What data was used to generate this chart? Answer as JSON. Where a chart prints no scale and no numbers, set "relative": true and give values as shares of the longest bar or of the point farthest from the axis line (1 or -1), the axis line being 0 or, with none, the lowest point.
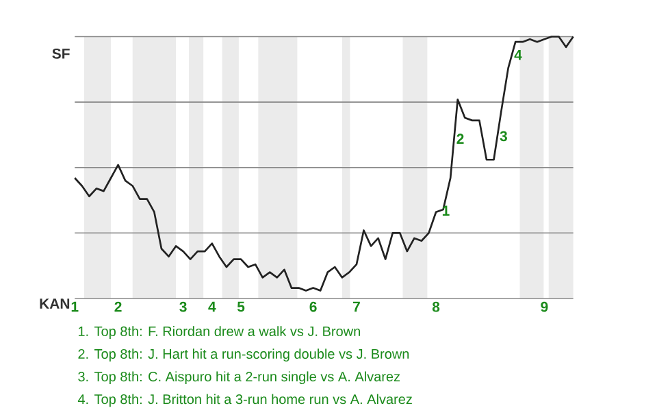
{
  "chart_data": {
    "type": "line",
    "relative": true,
    "categories": [
      "1",
      null,
      null,
      null,
      null,
      null,
      "2",
      null,
      null,
      null,
      null,
      null,
      null,
      null,
      null,
      "3",
      null,
      null,
      null,
      "4",
      null,
      null,
      null,
      "5",
      null,
      null,
      null,
      null,
      null,
      null,
      null,
      null,
      null,
      "6",
      null,
      null,
      null,
      null,
      null,
      "7",
      null,
      null,
      null,
      null,
      null,
      null,
      null,
      null,
      null,
      null,
      "8",
      null,
      null,
      null,
      null,
      null,
      null,
      null,
      null,
      null,
      null,
      null,
      null,
      null,
      null,
      "9",
      null,
      null,
      null,
      null
    ],
    "values": [
      0.46,
      0.43,
      0.39,
      0.42,
      0.41,
      0.46,
      0.51,
      0.45,
      0.43,
      0.38,
      0.38,
      0.33,
      0.19,
      0.16,
      0.2,
      0.18,
      0.15,
      0.18,
      0.18,
      0.21,
      0.16,
      0.12,
      0.15,
      0.15,
      0.12,
      0.13,
      0.08,
      0.1,
      0.08,
      0.11,
      0.04,
      0.04,
      0.03,
      0.04,
      0.03,
      0.1,
      0.12,
      0.08,
      0.1,
      0.13,
      0.26,
      0.2,
      0.23,
      0.15,
      0.25,
      0.25,
      0.18,
      0.23,
      0.22,
      0.25,
      0.33,
      0.34,
      0.46,
      0.76,
      0.69,
      0.68,
      0.68,
      0.53,
      0.53,
      0.71,
      0.88,
      0.98,
      0.98,
      0.99,
      0.98,
      0.99,
      1,
      1,
      0.96,
      1
    ],
    "color": "#222222",
    "ref_lines": [
      {
        "axis": "y",
        "value": 1,
        "label": "SF",
        "color": "#888888"
      },
      {
        "axis": "y",
        "value": 0.75,
        "color": "#888888"
      },
      {
        "axis": "y",
        "value": 0.5,
        "color": "#888888"
      },
      {
        "axis": "y",
        "value": 0.25,
        "color": "#888888"
      },
      {
        "axis": "y",
        "value": 0,
        "label": "KAN",
        "color": "#888888"
      }
    ],
    "annotations": [
      {
        "text": "1",
        "y": 0.34
      },
      {
        "text": "2",
        "y": 0.76
      },
      {
        "text": "3",
        "y": 0.71
      },
      {
        "text": "4",
        "y": 0.98
      },
      "1. Top 8th: F. Riordan drew a walk vs J. Brown",
      "2. Top 8th: J. Hart hit a run-scoring double vs J. Brown",
      "3. Top 8th: C. Aispuro hit a 2-run single vs A. Alvarez",
      "4. Top 8th: J. Britton hit a 3-run home run vs A. Alvarez"
    ]
  }
}
